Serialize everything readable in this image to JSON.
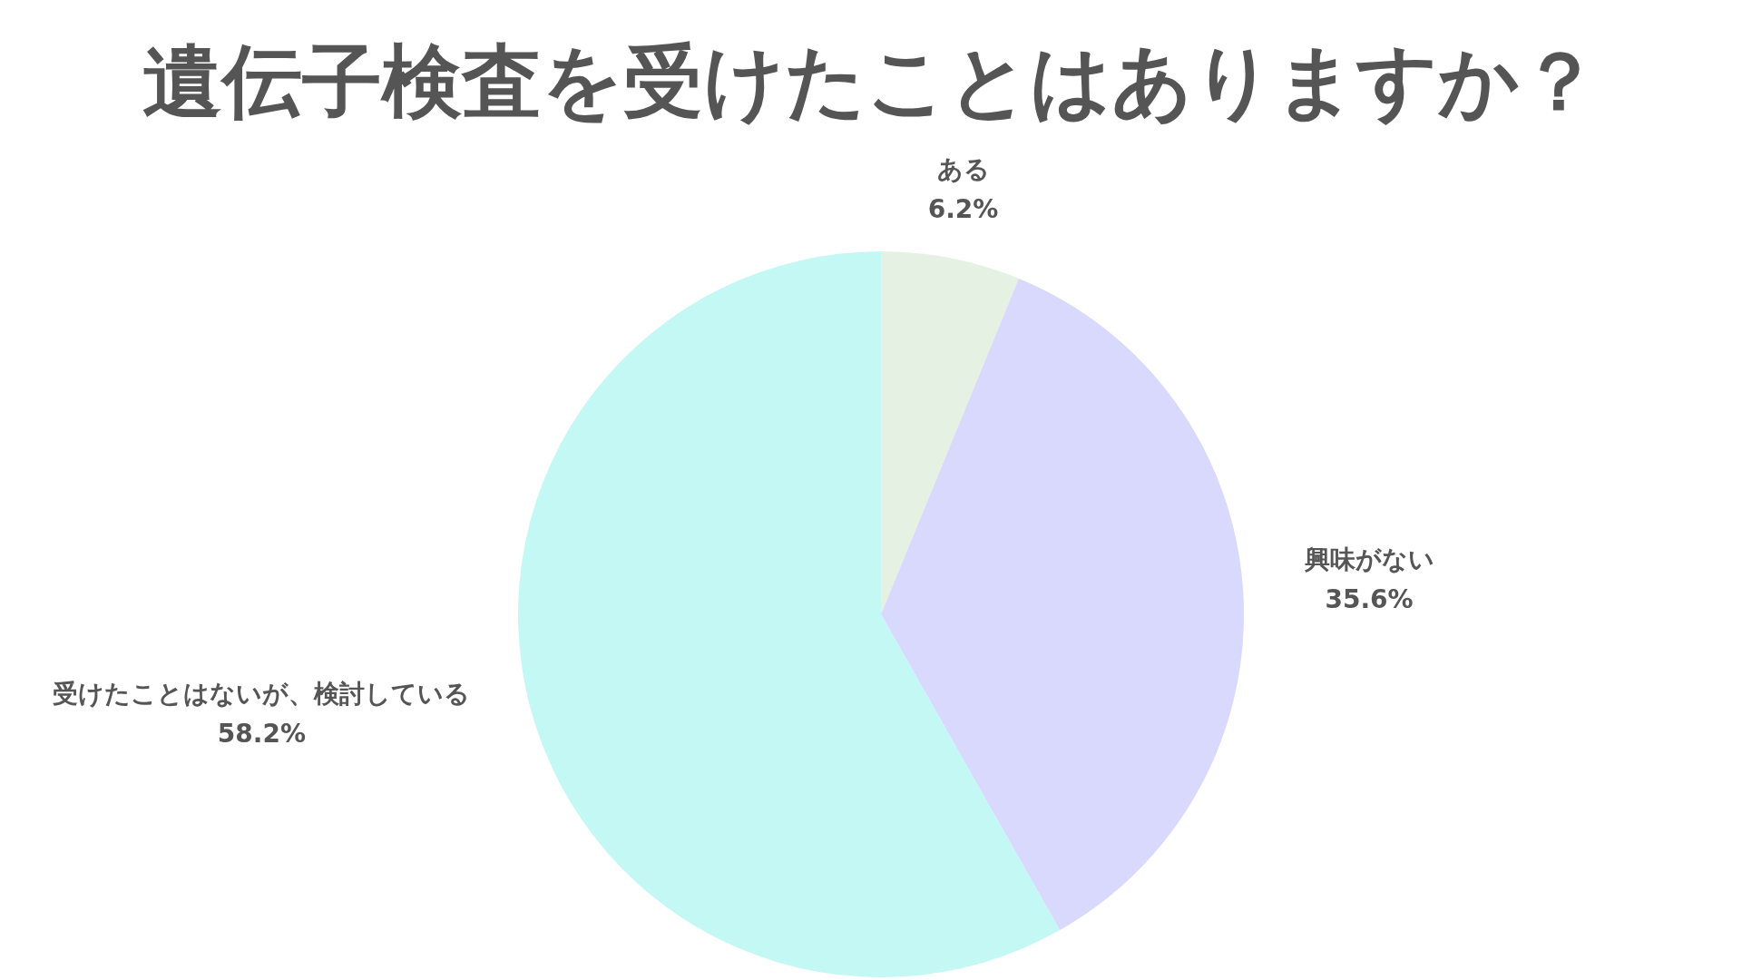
{
  "chart_data": {
    "type": "pie",
    "title": "遺伝子検査を受けたことはありますか？",
    "categories": [
      "ある",
      "興味がない",
      "受けたことはないが、検討している"
    ],
    "values": [
      6.2,
      35.6,
      58.2
    ],
    "colors": [
      "#e5f1e3",
      "#d8d9fc",
      "#c4f8f4"
    ],
    "value_labels": [
      "6.2%",
      "35.6%",
      "58.2%"
    ]
  }
}
